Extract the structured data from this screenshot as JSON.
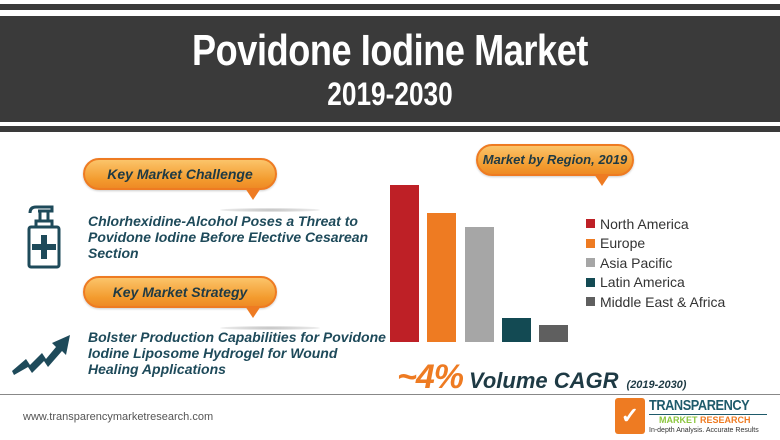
{
  "header": {
    "title": "Povidone Iodine Market",
    "years": "2019-2030"
  },
  "challenge": {
    "label": "Key Market Challenge",
    "icon": "hand-sanitizer-icon",
    "text": "Chlorhexidine-Alcohol Poses a Threat to Povidone Iodine Before Elective Cesarean Section"
  },
  "strategy": {
    "label": "Key Market Strategy",
    "icon": "trend-up-arrow-icon",
    "text": "Bolster Production Capabilities for Povidone Iodine Liposome Hydrogel for Wound Healing Applications"
  },
  "region": {
    "label": "Market by Region, 2019"
  },
  "cagr": {
    "value": "~4%",
    "label": "Volume CAGR",
    "period": "(2019-2030)"
  },
  "footer": {
    "url": "www.transparencymarketresearch.com",
    "logo_line1": "TRANSPARENCY",
    "logo_market": "MARKET",
    "logo_research": "RESEARCH",
    "logo_tagline": "In-depth Analysis. Accurate Results"
  },
  "chart_data": {
    "type": "bar",
    "title": "Market by Region, 2019",
    "categories": [
      "North America",
      "Europe",
      "Asia Pacific",
      "Latin America",
      "Middle East & Africa"
    ],
    "values": [
      100,
      82,
      73,
      15,
      11
    ],
    "colors": [
      "#be2026",
      "#ee7b22",
      "#a6a6a6",
      "#134a53",
      "#5f5f5f"
    ],
    "xlabel": "",
    "ylabel": "",
    "note": "Relative bar heights (no axis shown); North America = 100",
    "legend_position": "right",
    "grid": false
  }
}
